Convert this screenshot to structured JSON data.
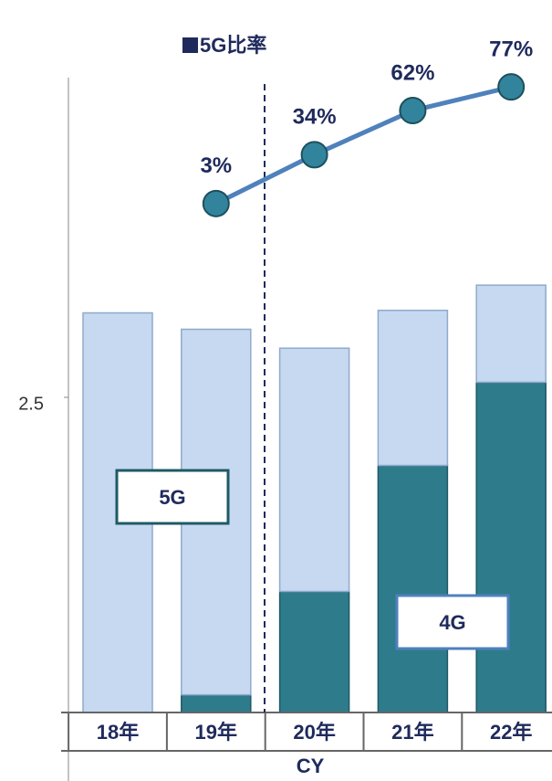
{
  "chart_data": {
    "type": "bar",
    "stacked": true,
    "categories": [
      "18年",
      "19年",
      "20年",
      "21年",
      "22年"
    ],
    "x_label": "CY",
    "ylim": [
      0,
      5.0
    ],
    "yticks": [
      2.5
    ],
    "y2lim": [
      -320,
      80
    ],
    "series": [
      {
        "name": "5G",
        "color": "#2e7b8c",
        "values": [
          0,
          0.14,
          0.96,
          1.96,
          2.62
        ]
      },
      {
        "name": "4G",
        "color": "#c6d9f1",
        "values": [
          3.17,
          2.9,
          1.93,
          1.23,
          0.77
        ]
      },
      {
        "name": "5G比率",
        "type": "line",
        "axis": "y2",
        "color": "#4f81bd",
        "values": [
          null,
          3,
          34,
          62,
          77
        ],
        "value_labels": [
          null,
          "3%",
          "34%",
          "62%",
          "77%"
        ]
      }
    ]
  }
}
